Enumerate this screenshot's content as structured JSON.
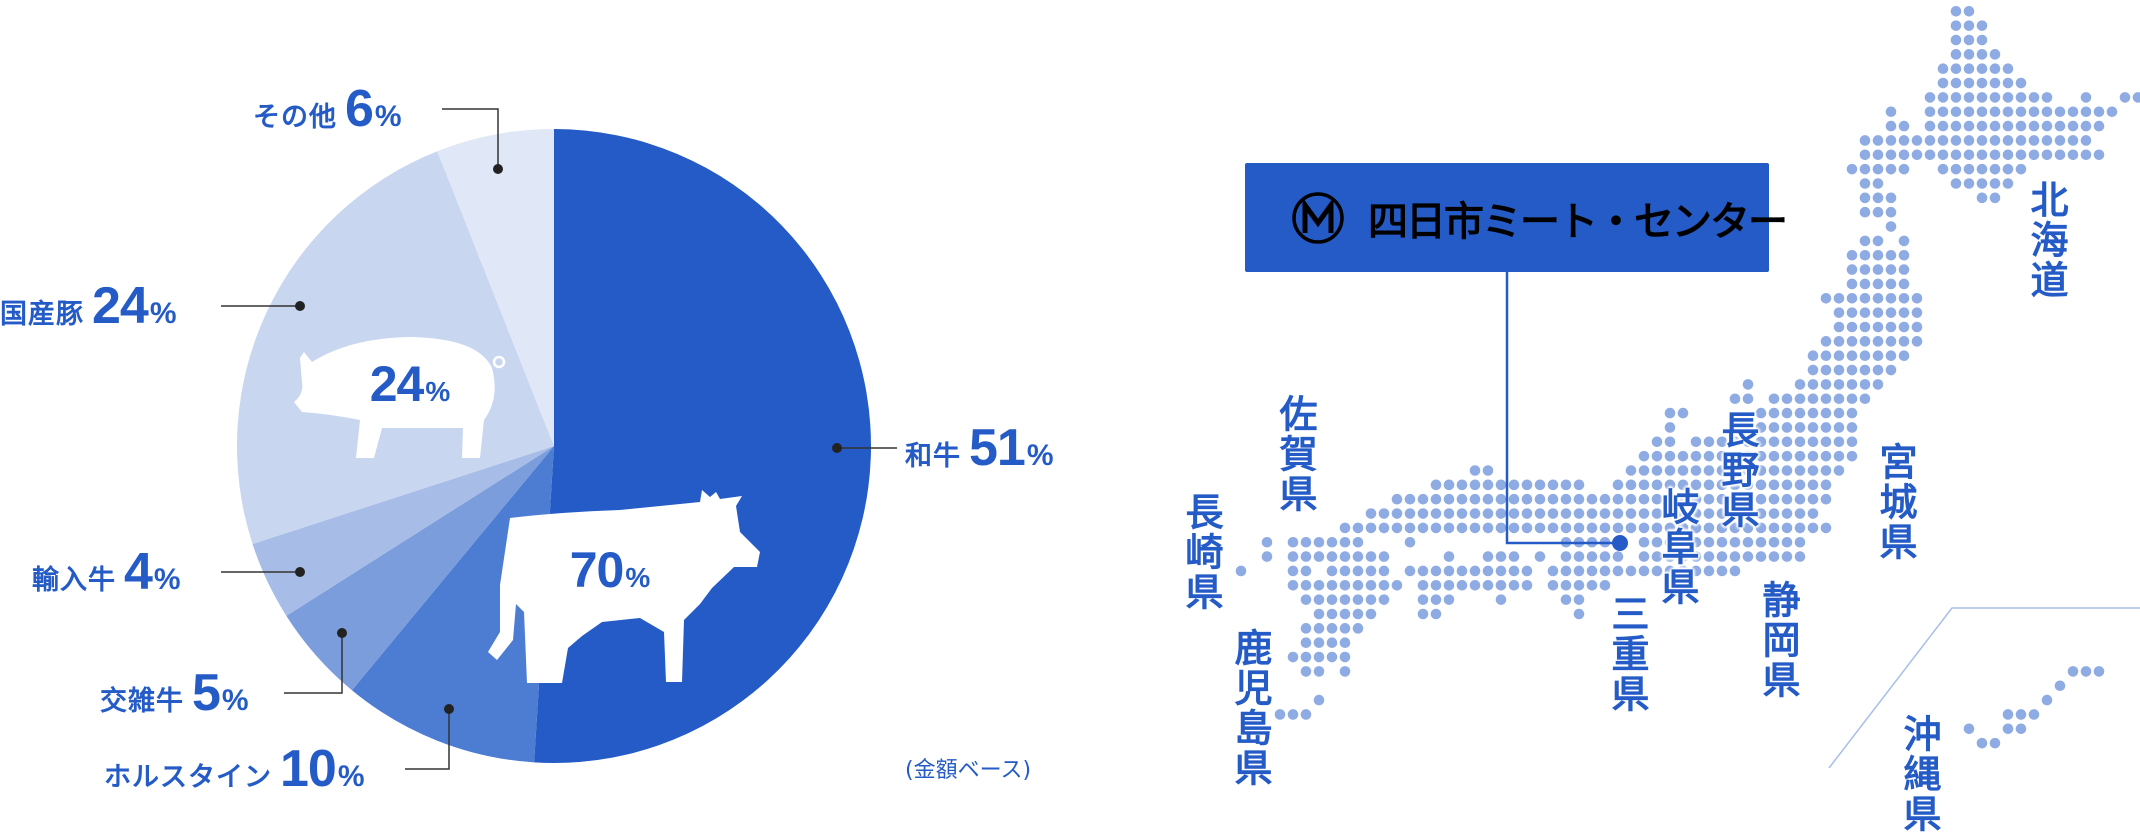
{
  "colors": {
    "accent": "#245BC6",
    "map_dot": "#8FABE3",
    "slices": [
      "#245BC6",
      "#4D7CD3",
      "#7B9DDC",
      "#A7BDE8",
      "#C9D6F0",
      "#E0E7F6"
    ]
  },
  "chart_data": {
    "type": "pie",
    "start": "top",
    "direction": "clockwise",
    "slices": [
      {
        "label": "和牛",
        "value": 51
      },
      {
        "label": "ホルスタイン",
        "value": 10
      },
      {
        "label": "交雑牛",
        "value": 5
      },
      {
        "label": "輸入牛",
        "value": 4
      },
      {
        "label": "国産豚",
        "value": 24
      },
      {
        "label": "その他",
        "value": 6
      }
    ],
    "unit": "%",
    "groups": [
      {
        "icon": "cow-icon",
        "value": "70",
        "unit": "%"
      },
      {
        "icon": "pig-icon",
        "value": "24",
        "unit": "%"
      }
    ],
    "note": "(金額ベース)"
  },
  "map": {
    "company": "四日市ミート・センター",
    "logo_icon": "circle-m-logo",
    "prefectures": [
      "北海道",
      "宮城県",
      "長野県",
      "岐阜県",
      "静岡県",
      "三重県",
      "佐賀県",
      "長崎県",
      "鹿児島県",
      "沖縄県"
    ]
  }
}
